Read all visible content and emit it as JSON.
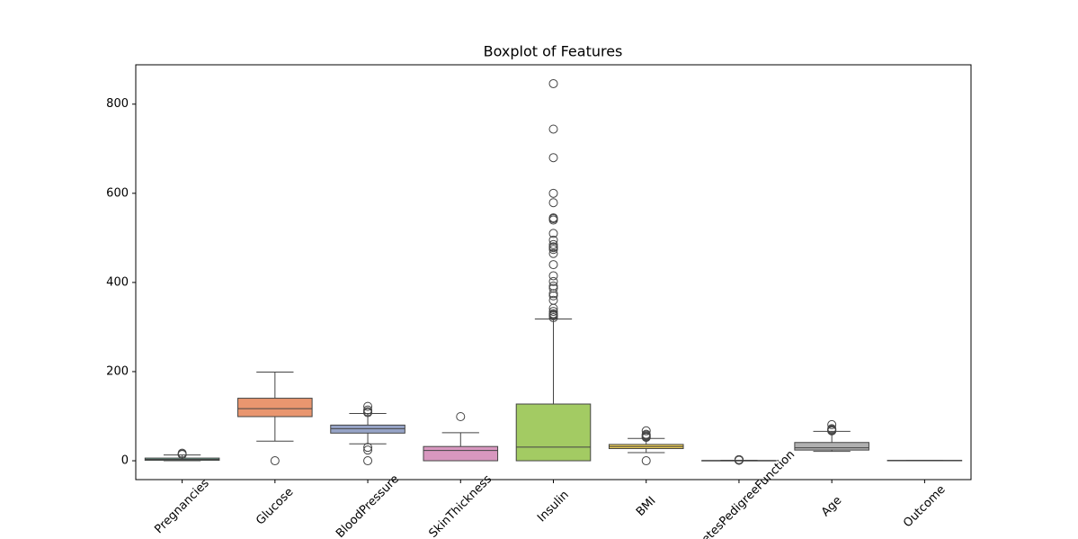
{
  "chart_data": {
    "type": "box",
    "title": "Boxplot of Features",
    "categories": [
      "Pregnancies",
      "Glucose",
      "BloodPressure",
      "SkinThickness",
      "Insulin",
      "BMI",
      "DiabetesPedigreeFunction",
      "Age",
      "Outcome"
    ],
    "colors": [
      "#72b59d",
      "#e9966f",
      "#96a3c6",
      "#d897bf",
      "#a3cb63",
      "#ebcc55",
      "#d5bf9c",
      "#b0b0b0",
      "#72b59d"
    ],
    "boxes": [
      {
        "min": 0,
        "q1": 1,
        "median": 3,
        "q3": 6,
        "max": 13,
        "outliers": [
          14,
          15,
          17
        ]
      },
      {
        "min": 44,
        "q1": 99,
        "median": 117,
        "q3": 140.25,
        "max": 199,
        "outliers": [
          0
        ]
      },
      {
        "min": 38,
        "q1": 62,
        "median": 72,
        "q3": 80,
        "max": 106,
        "outliers": [
          0,
          24,
          30,
          108,
          110,
          114,
          122
        ]
      },
      {
        "min": 0,
        "q1": 0,
        "median": 23,
        "q3": 32,
        "max": 63,
        "outliers": [
          99
        ]
      },
      {
        "min": 0,
        "q1": 0,
        "median": 30.5,
        "q3": 127.25,
        "max": 318,
        "outliers": [
          321,
          325,
          326,
          328,
          330,
          335,
          342,
          360,
          370,
          375,
          387,
          392,
          402,
          415,
          440,
          465,
          474,
          478,
          480,
          485,
          495,
          510,
          540,
          543,
          545,
          579,
          600,
          680,
          744,
          846
        ]
      },
      {
        "min": 18.2,
        "q1": 27.3,
        "median": 32,
        "q3": 36.6,
        "max": 50,
        "outliers": [
          0,
          52.3,
          53.2,
          55,
          57.3,
          59.4,
          67.1
        ]
      },
      {
        "min": 0.078,
        "q1": 0.24,
        "median": 0.37,
        "q3": 0.63,
        "max": 1.19,
        "outliers": [
          1.2,
          1.4,
          1.6,
          1.9,
          2.1,
          2.3,
          2.42
        ]
      },
      {
        "min": 21,
        "q1": 24,
        "median": 29,
        "q3": 41,
        "max": 66,
        "outliers": [
          67,
          68,
          69,
          70,
          72,
          81
        ]
      },
      {
        "min": 0,
        "q1": 0,
        "median": 0,
        "q3": 1,
        "max": 1,
        "outliers": []
      }
    ],
    "ylim": [
      -42.3,
      888.3
    ],
    "yticks": [
      0,
      200,
      400,
      600,
      800
    ]
  }
}
